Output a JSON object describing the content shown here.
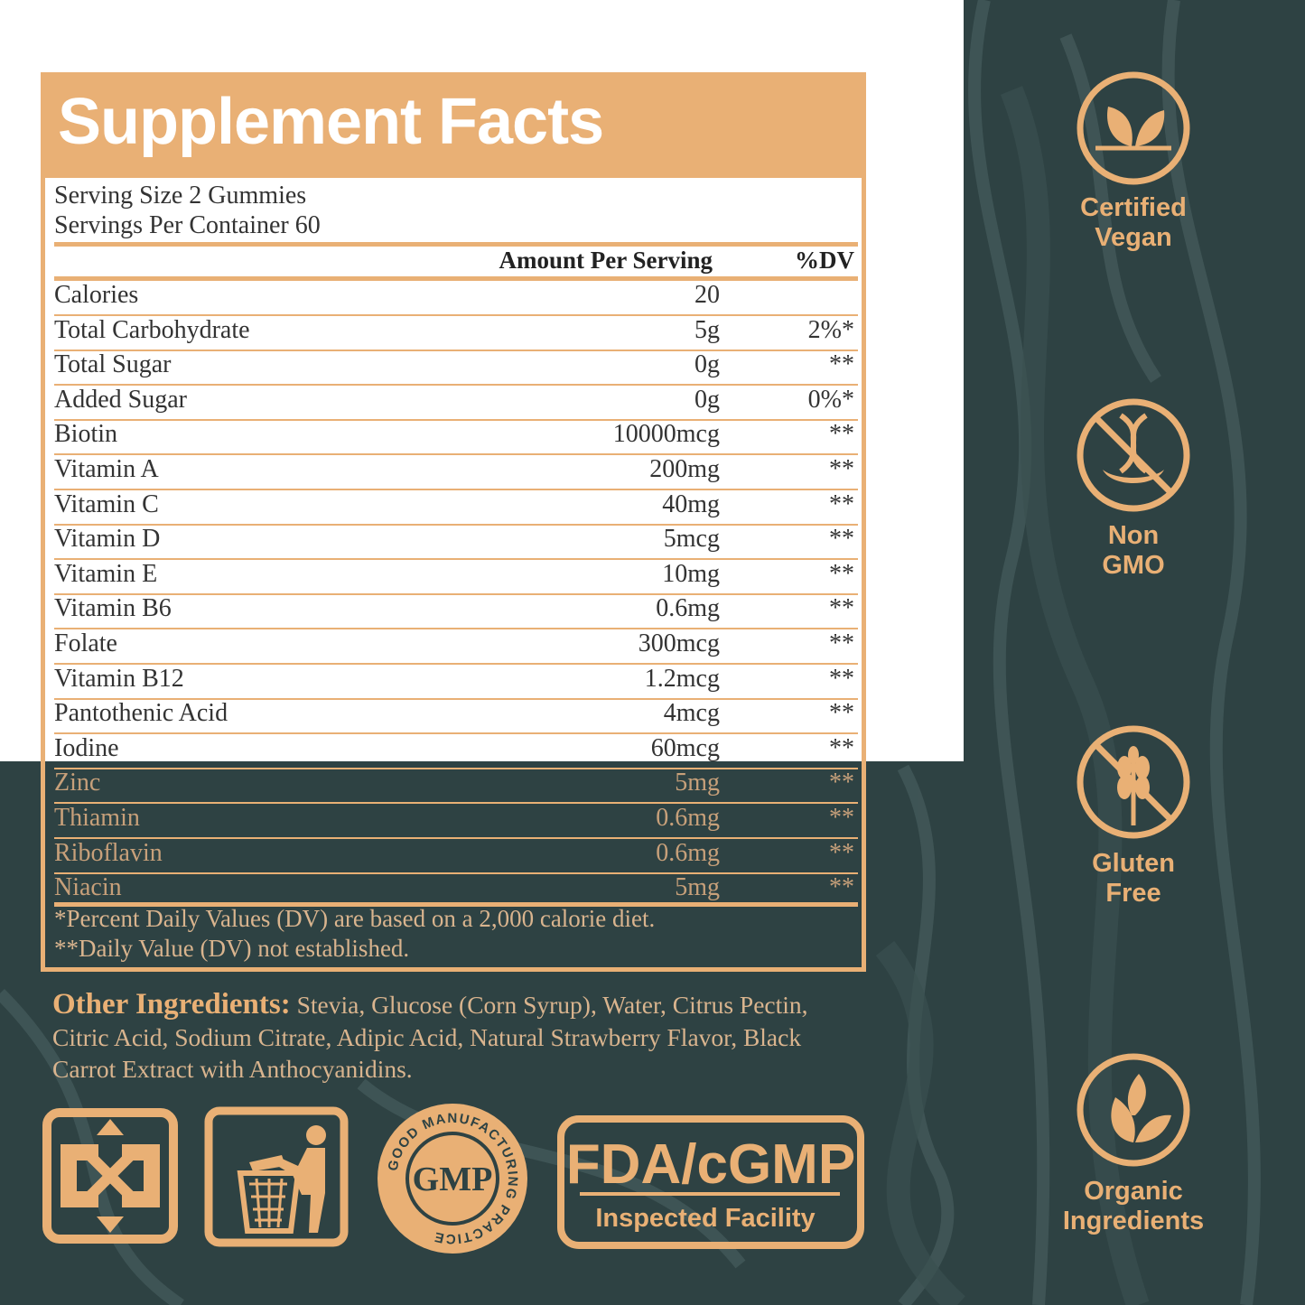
{
  "colors": {
    "accent": "#e9b075",
    "background": "#2e4243",
    "panel": "#ffffff"
  },
  "facts": {
    "title": "Supplement Facts",
    "serving_size": "Serving Size 2 Gummies",
    "servings_per_container": "Servings Per Container 60",
    "amount_header": "Amount Per Serving",
    "dv_header": "%DV",
    "rows": [
      {
        "name": "Calories",
        "amount": "20",
        "dv": ""
      },
      {
        "name": "Total Carbohydrate",
        "amount": "5g",
        "dv": "2%*"
      },
      {
        "name": "Total Sugar",
        "amount": "0g",
        "dv": "**"
      },
      {
        "name": "Added Sugar",
        "amount": "0g",
        "dv": "0%*"
      },
      {
        "name": "Biotin",
        "amount": "10000mcg",
        "dv": "**"
      },
      {
        "name": "Vitamin A",
        "amount": "200mg",
        "dv": "**"
      },
      {
        "name": "Vitamin C",
        "amount": "40mg",
        "dv": "**"
      },
      {
        "name": "Vitamin D",
        "amount": "5mcg",
        "dv": "**"
      },
      {
        "name": "Vitamin E",
        "amount": "10mg",
        "dv": "**"
      },
      {
        "name": "Vitamin B6",
        "amount": "0.6mg",
        "dv": "**"
      },
      {
        "name": "Folate",
        "amount": "300mcg",
        "dv": "**"
      },
      {
        "name": "Vitamin B12",
        "amount": "1.2mcg",
        "dv": "**"
      },
      {
        "name": "Pantothenic Acid",
        "amount": "4mcg",
        "dv": "**"
      },
      {
        "name": "Iodine",
        "amount": "60mcg",
        "dv": "**"
      },
      {
        "name": "Zinc",
        "amount": "5mg",
        "dv": "**"
      },
      {
        "name": "Thiamin",
        "amount": "0.6mg",
        "dv": "**"
      },
      {
        "name": "Riboflavin",
        "amount": "0.6mg",
        "dv": "**"
      },
      {
        "name": "Niacin",
        "amount": "5mg",
        "dv": "**"
      }
    ],
    "footnote_1": "*Percent Daily Values (DV) are based on a 2,000 calorie diet.",
    "footnote_2": "**Daily Value (DV) not established."
  },
  "ingredients": {
    "label": "Other Ingredients:",
    "text": " Stevia, Glucose (Corn Syrup), Water, Citrus Pectin, Citric Acid, Sodium Citrate, Adipic Acid, Natural Strawberry Flavor, Black Carrot Extract with Anthocyanidins."
  },
  "badges": [
    {
      "icon": "leaf-icon",
      "line1": "Certified",
      "line2": "Vegan"
    },
    {
      "icon": "no-dna-icon",
      "line1": "Non",
      "line2": "GMO"
    },
    {
      "icon": "no-wheat-icon",
      "line1": "Gluten",
      "line2": "Free"
    },
    {
      "icon": "leaves-icon",
      "line1": "Organic",
      "line2": "Ingredients"
    }
  ],
  "logos": {
    "recycle_icon": "recycle-icon",
    "trash_icon": "dispose-trash-icon",
    "gmp_center": "GMP",
    "gmp_ring": "GOOD MANUFACTURING PRACTICE",
    "fda_main": "FDA/cGMP",
    "fda_sub": "Inspected Facility"
  }
}
